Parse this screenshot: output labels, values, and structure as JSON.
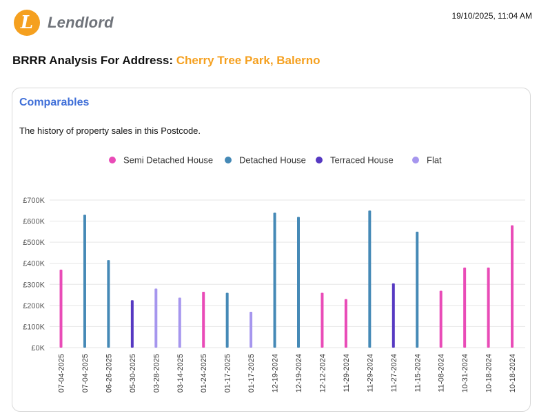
{
  "header": {
    "logo_letter": "L",
    "logo_text": "Lendlord",
    "timestamp": "19/10/2025, 11:04 AM"
  },
  "title": {
    "prefix": "BRRR Analysis For Address: ",
    "address": "Cherry Tree Park, Balerno"
  },
  "card": {
    "title": "Comparables",
    "subtitle": "The history of property sales in this Postcode."
  },
  "colors": {
    "accent_orange": "#f5a01f",
    "title_blue": "#3f6fd8"
  },
  "chart_data": {
    "type": "bar",
    "legend": [
      {
        "name": "Semi Detached House",
        "color": "#e94bb7"
      },
      {
        "name": "Detached House",
        "color": "#4589b6"
      },
      {
        "name": "Terraced House",
        "color": "#5639c2"
      },
      {
        "name": "Flat",
        "color": "#a696ee"
      }
    ],
    "categories": [
      "07-04-2025",
      "07-04-2025",
      "06-26-2025",
      "05-30-2025",
      "03-28-2025",
      "03-14-2025",
      "01-24-2025",
      "01-17-2025",
      "01-17-2025",
      "12-19-2024",
      "12-19-2024",
      "12-12-2024",
      "11-29-2024",
      "11-29-2024",
      "11-27-2024",
      "11-15-2024",
      "11-08-2024",
      "10-31-2024",
      "10-18-2024",
      "10-18-2024"
    ],
    "values": [
      370000,
      630000,
      415000,
      225000,
      280000,
      237000,
      265000,
      260000,
      170000,
      640000,
      620000,
      260000,
      230000,
      650000,
      305000,
      550000,
      270000,
      380000,
      380000,
      580000
    ],
    "types": [
      "Semi Detached House",
      "Detached House",
      "Detached House",
      "Terraced House",
      "Flat",
      "Flat",
      "Semi Detached House",
      "Detached House",
      "Flat",
      "Detached House",
      "Detached House",
      "Semi Detached House",
      "Semi Detached House",
      "Detached House",
      "Terraced House",
      "Detached House",
      "Semi Detached House",
      "Semi Detached House",
      "Semi Detached House",
      "Semi Detached House"
    ],
    "y_ticks": [
      "£0K",
      "£100K",
      "£200K",
      "£300K",
      "£400K",
      "£500K",
      "£600K",
      "£700K"
    ],
    "ylim": [
      0,
      700000
    ],
    "grid": true,
    "legend_position": "top-center"
  }
}
